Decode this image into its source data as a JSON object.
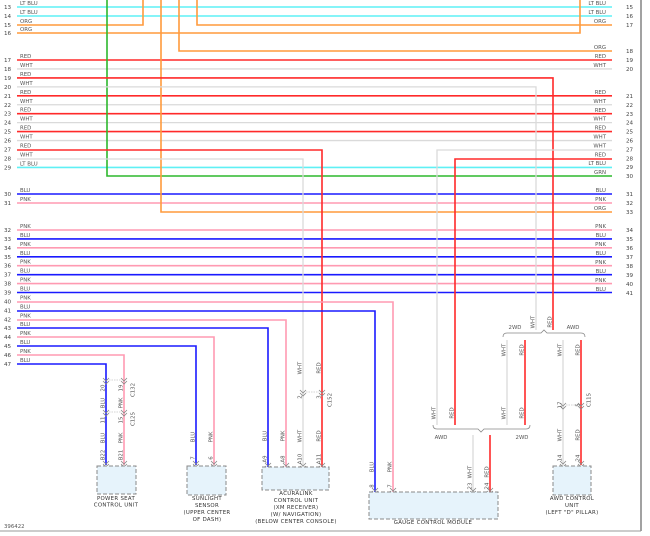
{
  "diagram_id": "396422",
  "wire_colors": {
    "LT BLU": "#5ff0f5",
    "ORG": "#ff9a3c",
    "RED": "#ff2a2a",
    "WHT": "#dadada",
    "BLU": "#1a1aff",
    "PNK": "#ff9ab2",
    "GRN": "#2db82d"
  },
  "left_rows": [
    {
      "num": "13",
      "label": "LT BLU"
    },
    {
      "num": "14",
      "label": "LT BLU"
    },
    {
      "num": "15",
      "label": "ORG"
    },
    {
      "num": "16",
      "label": "ORG"
    },
    {
      "num": "17",
      "label": "RED"
    },
    {
      "num": "18",
      "label": "WHT"
    },
    {
      "num": "19",
      "label": "RED"
    },
    {
      "num": "20",
      "label": "WHT"
    },
    {
      "num": "21",
      "label": "RED"
    },
    {
      "num": "22",
      "label": "WHT"
    },
    {
      "num": "23",
      "label": "RED"
    },
    {
      "num": "24",
      "label": "WHT"
    },
    {
      "num": "25",
      "label": "RED"
    },
    {
      "num": "26",
      "label": "WHT"
    },
    {
      "num": "27",
      "label": "RED"
    },
    {
      "num": "28",
      "label": "WHT"
    },
    {
      "num": "29",
      "label": "LT BLU"
    },
    {
      "num": "30",
      "label": "BLU"
    },
    {
      "num": "31",
      "label": "PNK"
    },
    {
      "num": "32",
      "label": "PNK"
    },
    {
      "num": "33",
      "label": "BLU"
    },
    {
      "num": "34",
      "label": "PNK"
    },
    {
      "num": "35",
      "label": "BLU"
    },
    {
      "num": "36",
      "label": "PNK"
    },
    {
      "num": "37",
      "label": "BLU"
    },
    {
      "num": "38",
      "label": "PNK"
    },
    {
      "num": "39",
      "label": "BLU"
    },
    {
      "num": "40",
      "label": "PNK"
    },
    {
      "num": "41",
      "label": "BLU"
    },
    {
      "num": "42",
      "label": "PNK"
    },
    {
      "num": "43",
      "label": "BLU"
    },
    {
      "num": "44",
      "label": "PNK"
    },
    {
      "num": "45",
      "label": "BLU"
    },
    {
      "num": "46",
      "label": "PNK"
    },
    {
      "num": "47",
      "label": "BLU"
    }
  ],
  "right_rows": [
    {
      "num": "15",
      "label": "LT BLU"
    },
    {
      "num": "16",
      "label": "LT BLU"
    },
    {
      "num": "17",
      "label": "ORG"
    },
    {
      "num": "18",
      "label": "ORG"
    },
    {
      "num": "19",
      "label": "RED"
    },
    {
      "num": "20",
      "label": "WHT"
    },
    {
      "num": "21",
      "label": "RED"
    },
    {
      "num": "22",
      "label": "WHT"
    },
    {
      "num": "23",
      "label": "RED"
    },
    {
      "num": "24",
      "label": "WHT"
    },
    {
      "num": "25",
      "label": "RED"
    },
    {
      "num": "26",
      "label": "WHT"
    },
    {
      "num": "27",
      "label": "WHT"
    },
    {
      "num": "28",
      "label": "RED"
    },
    {
      "num": "29",
      "label": "LT BLU"
    },
    {
      "num": "30",
      "label": "GRN"
    },
    {
      "num": "31",
      "label": "BLU"
    },
    {
      "num": "32",
      "label": "PNK"
    },
    {
      "num": "33",
      "label": "ORG"
    },
    {
      "num": "34",
      "label": "PNK"
    },
    {
      "num": "35",
      "label": "BLU"
    },
    {
      "num": "36",
      "label": "PNK"
    },
    {
      "num": "37",
      "label": "BLU"
    },
    {
      "num": "38",
      "label": "PNK"
    },
    {
      "num": "39",
      "label": "BLU"
    },
    {
      "num": "40",
      "label": "PNK"
    },
    {
      "num": "41",
      "label": "BLU"
    }
  ],
  "components": {
    "power_seat": {
      "name_lines": [
        "POWER SEAT",
        "CONTROL UNIT"
      ],
      "upper_wires": [
        "BLU",
        "PNK"
      ],
      "connector_upper": {
        "id": "C132",
        "pins": [
          "20",
          "19"
        ]
      },
      "connector_lower": {
        "id": "C125",
        "pins": [
          "11",
          "15"
        ]
      },
      "lower_wires": [
        "BLU",
        "PNK"
      ],
      "pins": [
        "B22",
        "B21"
      ]
    },
    "sunlight_sensor": {
      "name_lines": [
        "SUNLIGHT",
        "SENSOR",
        "(UPPER CENTER",
        "OF DASH)"
      ],
      "wires": [
        "BLU",
        "PNK"
      ],
      "pins": [
        "7",
        "6"
      ]
    },
    "acuralink": {
      "name_lines": [
        "ACURALINK",
        "CONTROL UNIT",
        "(XM RECEIVER)",
        "(W/ NAVIGATION)",
        "(BELOW CENTER CONSOLE)"
      ],
      "upper_wires": [
        "WHT",
        "RED"
      ],
      "connector": {
        "id": "C152",
        "pins": [
          "2",
          "3"
        ]
      },
      "wires": [
        "BLU",
        "PNK",
        "WHT",
        "RED"
      ],
      "pins": [
        "A9",
        "A8",
        "A10",
        "A11"
      ]
    },
    "gauge": {
      "name": "GAUGE CONTROL MODULE",
      "wires": [
        "BLU",
        "PNK",
        "WHT",
        "RED"
      ],
      "pins": [
        "8",
        "7",
        "23",
        "24"
      ]
    },
    "variant_split_lower": {
      "wires": [
        "WHT",
        "RED",
        "WHT",
        "RED"
      ],
      "left_label": "AWD",
      "right_label": "2WD"
    },
    "variant_split_upper": {
      "in_wires": [
        "WHT",
        "RED"
      ],
      "left_label": "2WD",
      "right_label": "AWD",
      "out_wires": [
        "WHT",
        "RED",
        "WHT",
        "RED"
      ]
    },
    "awd_unit": {
      "name_lines": [
        "AWD CONTROL",
        "UNIT",
        "(LEFT \"D\" PILLAR)"
      ],
      "connector": {
        "id": "C115",
        "pins": [
          "17",
          "5"
        ]
      },
      "wires": [
        "WHT",
        "RED"
      ],
      "pins": [
        "14",
        "24"
      ]
    }
  }
}
